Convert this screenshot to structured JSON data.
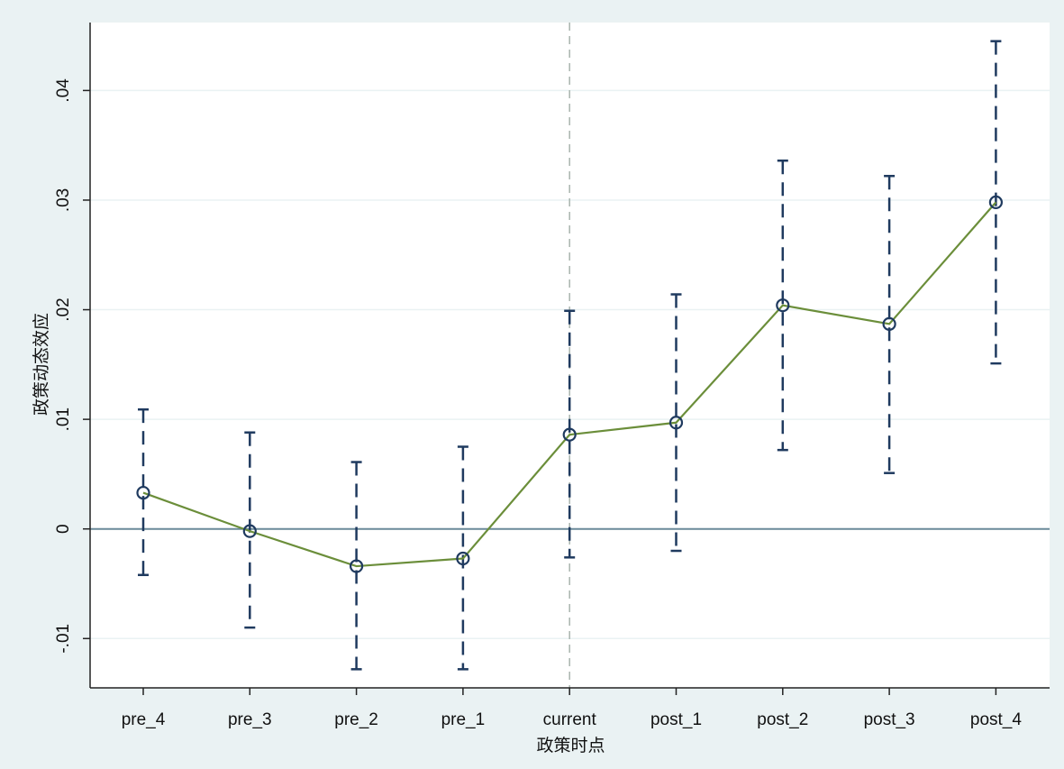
{
  "chart_data": {
    "type": "line",
    "title": "",
    "xlabel": "政策时点",
    "ylabel": "政策动态效应",
    "categories": [
      "pre_4",
      "pre_3",
      "pre_2",
      "pre_1",
      "current",
      "post_1",
      "post_2",
      "post_3",
      "post_4"
    ],
    "series": [
      {
        "values": [
          0.0033,
          -0.0002,
          -0.0034,
          -0.0027,
          0.0086,
          0.0097,
          0.0204,
          0.0187,
          0.0298
        ],
        "ci_lower": [
          -0.0042,
          -0.009,
          -0.0128,
          -0.0128,
          -0.0026,
          -0.002,
          0.0072,
          0.0051,
          0.0151
        ],
        "ci_upper": [
          0.0109,
          0.0088,
          0.0061,
          0.0075,
          0.0199,
          0.0214,
          0.0336,
          0.0322,
          0.0445
        ]
      }
    ],
    "yticks": [
      -0.01,
      0,
      0.01,
      0.02,
      0.03,
      0.04
    ],
    "ytick_labels": [
      "-.01",
      "0",
      ".01",
      ".02",
      ".03",
      ".04"
    ],
    "ylim": [
      -0.0145,
      0.0462
    ],
    "reference_lines": {
      "vertical_at": "current",
      "horizontal_at": 0
    },
    "grid": true,
    "colors": {
      "background": "#eaf2f3",
      "plot_background": "#ffffff",
      "line": "#6b8e3a",
      "marker": "#1f3a5f",
      "ci": "#1f3a5f",
      "zero_line": "#6a8a99",
      "vline": "#a9b5ae",
      "grid": "#eaf2f3",
      "axis": "#222222"
    }
  }
}
